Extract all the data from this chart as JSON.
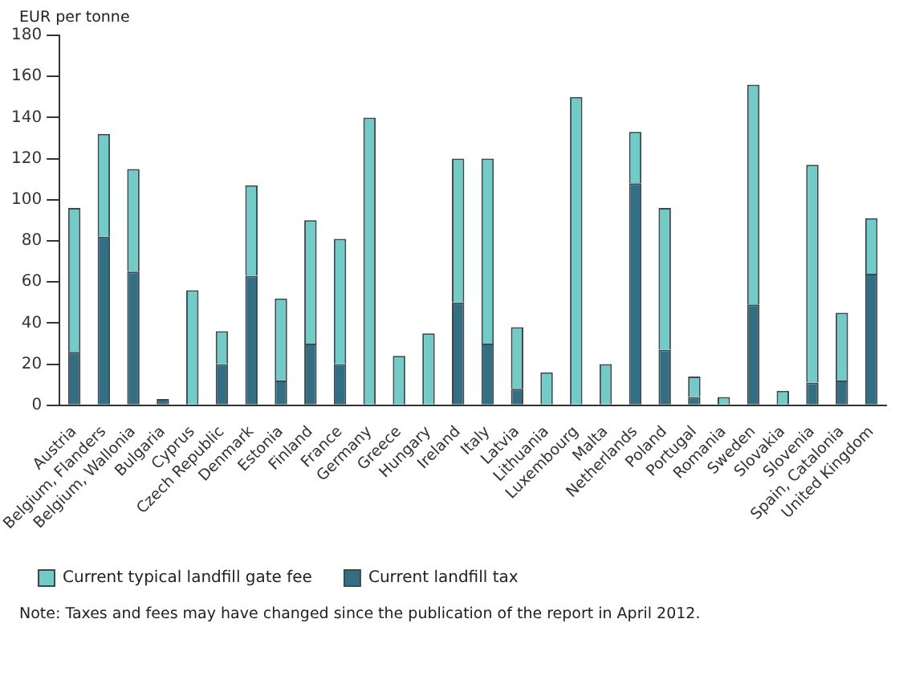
{
  "chart_data": {
    "type": "bar",
    "ylabel": "EUR per tonne",
    "stacked": true,
    "grid": false,
    "legend": "bottom",
    "ylim": [
      0,
      180
    ],
    "yticks": [
      0,
      20,
      40,
      60,
      80,
      100,
      120,
      140,
      160,
      180
    ],
    "categories": [
      "Austria",
      "Belgium, Flanders",
      "Belgium, Wallonia",
      "Bulgaria",
      "Cyprus",
      "Czech Republic",
      "Denmark",
      "Estonia",
      "Finland",
      "France",
      "Germany",
      "Greece",
      "Hungary",
      "Ireland",
      "Italy",
      "Latvia",
      "Lithuania",
      "Luxembourg",
      "Malta",
      "Netherlands",
      "Poland",
      "Portugal",
      "Romania",
      "Sweden",
      "Slovakia",
      "Slovenia",
      "Spain, Catalonia",
      "United Kingdom"
    ],
    "series": [
      {
        "name": "Current landfill tax",
        "color": "#336e82",
        "values": [
          26,
          82,
          65,
          3,
          0,
          20,
          63,
          12,
          30,
          20,
          0,
          0,
          0,
          50,
          30,
          8,
          0,
          0,
          0,
          108,
          27,
          4,
          0,
          49,
          0,
          11,
          12,
          64
        ]
      },
      {
        "name": "Current typical landfill gate fee",
        "color": "#72cbc6",
        "values": [
          70,
          50,
          50,
          0,
          56,
          16,
          44,
          40,
          60,
          61,
          140,
          24,
          35,
          70,
          90,
          30,
          16,
          150,
          20,
          25,
          69,
          10,
          4,
          107,
          7,
          106,
          33,
          27
        ]
      }
    ],
    "annotations": [
      "Note: Taxes and fees may have changed since the publication of the report in April 2012."
    ]
  }
}
